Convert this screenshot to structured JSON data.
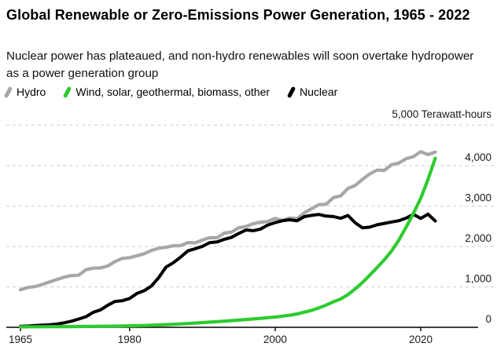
{
  "header": {
    "title": "Global Renewable or Zero-Emissions Power Generation, 1965 - 2022",
    "subtitle": "Nuclear power has plateaued, and non-hydro renewables will soon overtake hydropower as a power generation group"
  },
  "legend": [
    {
      "label": "Hydro",
      "color": "#a7a7a7"
    },
    {
      "label": "Wind, solar, geothermal, biomass, other",
      "color": "#2ecb30"
    },
    {
      "label": "Nuclear",
      "color": "#000000"
    }
  ],
  "axis_unit_label": "5,000 Terawatt-hours",
  "colors": {
    "gridline": "#d6d6d6",
    "axis": "#000000",
    "tick_text": "#1a1a1a"
  },
  "chart_data": {
    "type": "line",
    "title": "Global Renewable or Zero-Emissions Power Generation, 1965 - 2022",
    "ylabel": "Terawatt-hours",
    "xlabel": "",
    "xlim": [
      1965,
      2022
    ],
    "ylim": [
      0,
      5000
    ],
    "x_ticks": [
      1965,
      1980,
      2000,
      2020
    ],
    "y_ticks": [
      0,
      1000,
      2000,
      3000,
      4000
    ],
    "y_top_gridline": 5000,
    "grid": "horizontal-dashed",
    "legend_position": "top",
    "x": [
      1965,
      1966,
      1967,
      1968,
      1969,
      1970,
      1971,
      1972,
      1973,
      1974,
      1975,
      1976,
      1977,
      1978,
      1979,
      1980,
      1981,
      1982,
      1983,
      1984,
      1985,
      1986,
      1987,
      1988,
      1989,
      1990,
      1991,
      1992,
      1993,
      1994,
      1995,
      1996,
      1997,
      1998,
      1999,
      2000,
      2001,
      2002,
      2003,
      2004,
      2005,
      2006,
      2007,
      2008,
      2009,
      2010,
      2011,
      2012,
      2013,
      2014,
      2015,
      2016,
      2017,
      2018,
      2019,
      2020,
      2021,
      2022
    ],
    "series": [
      {
        "name": "Hydro",
        "color": "#a7a7a7",
        "values": [
          926,
          985,
          1007,
          1060,
          1122,
          1182,
          1240,
          1280,
          1288,
          1425,
          1462,
          1470,
          1516,
          1627,
          1705,
          1723,
          1769,
          1820,
          1900,
          1957,
          1979,
          2017,
          2021,
          2096,
          2089,
          2159,
          2216,
          2216,
          2330,
          2357,
          2462,
          2496,
          2566,
          2600,
          2618,
          2696,
          2640,
          2705,
          2688,
          2832,
          2933,
          3035,
          3044,
          3208,
          3252,
          3437,
          3509,
          3663,
          3794,
          3890,
          3882,
          4023,
          4065,
          4171,
          4222,
          4346,
          4274,
          4334
        ]
      },
      {
        "name": "Nuclear",
        "color": "#000000",
        "values": [
          26,
          32,
          42,
          53,
          62,
          79,
          111,
          152,
          203,
          263,
          370,
          432,
          548,
          641,
          658,
          713,
          837,
          905,
          1024,
          1229,
          1489,
          1596,
          1735,
          1892,
          1944,
          2001,
          2096,
          2111,
          2176,
          2225,
          2322,
          2407,
          2390,
          2431,
          2532,
          2591,
          2637,
          2661,
          2635,
          2738,
          2768,
          2793,
          2751,
          2739,
          2697,
          2767,
          2584,
          2461,
          2478,
          2535,
          2571,
          2605,
          2636,
          2701,
          2796,
          2693,
          2800,
          2632
        ]
      },
      {
        "name": "Wind, solar, geothermal, biomass, other",
        "color": "#2ecb30",
        "values": [
          12,
          13,
          13,
          14,
          15,
          16,
          17,
          18,
          19,
          21,
          23,
          25,
          27,
          30,
          33,
          36,
          40,
          45,
          51,
          58,
          66,
          74,
          83,
          93,
          104,
          116,
          128,
          140,
          152,
          165,
          178,
          192,
          207,
          222,
          238,
          255,
          275,
          300,
          330,
          375,
          420,
          480,
          550,
          630,
          700,
          810,
          950,
          1110,
          1290,
          1480,
          1670,
          1890,
          2160,
          2480,
          2820,
          3190,
          3660,
          4180
        ]
      }
    ]
  }
}
